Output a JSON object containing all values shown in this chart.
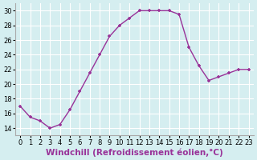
{
  "x": [
    0,
    1,
    2,
    3,
    4,
    5,
    6,
    7,
    8,
    9,
    10,
    11,
    12,
    13,
    14,
    15,
    16,
    17,
    18,
    19,
    20,
    21,
    22,
    23
  ],
  "y": [
    17,
    15.5,
    15,
    14,
    14.5,
    16.5,
    19,
    21.5,
    24,
    26.5,
    28,
    29,
    30,
    30,
    30,
    30,
    29.5,
    25,
    22.5,
    20.5,
    21,
    21.5,
    22,
    22
  ],
  "line_color": "#993399",
  "marker": "P",
  "background_color": "#d5eef0",
  "grid_color": "#ffffff",
  "xlabel": "Windchill (Refroidissement éolien,°C)",
  "xlabel_fontsize": 7.5,
  "ylim": [
    13,
    31
  ],
  "xlim": [
    -0.5,
    23.5
  ],
  "yticks": [
    14,
    16,
    18,
    20,
    22,
    24,
    26,
    28,
    30
  ],
  "xticks": [
    0,
    1,
    2,
    3,
    4,
    5,
    6,
    7,
    8,
    9,
    10,
    11,
    12,
    13,
    14,
    15,
    16,
    17,
    18,
    19,
    20,
    21,
    22,
    23
  ],
  "tick_fontsize": 6,
  "line_width": 1.0,
  "marker_size": 3
}
